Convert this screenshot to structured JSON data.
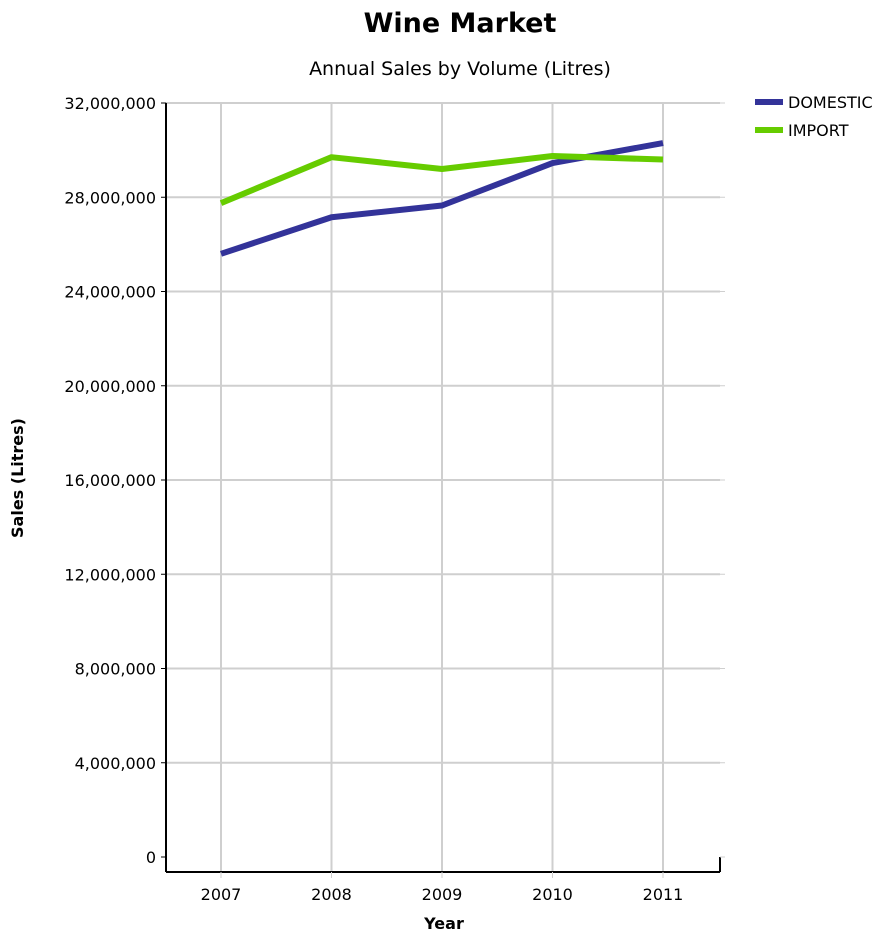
{
  "chart_data": {
    "type": "line",
    "title": "Wine Market",
    "subtitle": "Annual Sales by Volume (Litres)",
    "xlabel": "Year",
    "ylabel": "Sales (Litres)",
    "categories": [
      "2007",
      "2008",
      "2009",
      "2010",
      "2011"
    ],
    "ylim": [
      0,
      32000000
    ],
    "yticks": [
      0,
      4000000,
      8000000,
      12000000,
      16000000,
      20000000,
      24000000,
      28000000,
      32000000
    ],
    "ytick_labels": [
      "0",
      "4,000,000",
      "8,000,000",
      "12,000,000",
      "16,000,000",
      "20,000,000",
      "24,000,000",
      "28,000,000",
      "32,000,000"
    ],
    "grid": true,
    "legend_position": "top-right",
    "series": [
      {
        "name": "DOMESTIC",
        "color": "#333399",
        "values": [
          25600000,
          27150000,
          27650000,
          29450000,
          30300000
        ]
      },
      {
        "name": "IMPORT",
        "color": "#66cc00",
        "values": [
          27750000,
          29700000,
          29200000,
          29750000,
          29600000
        ]
      }
    ]
  }
}
